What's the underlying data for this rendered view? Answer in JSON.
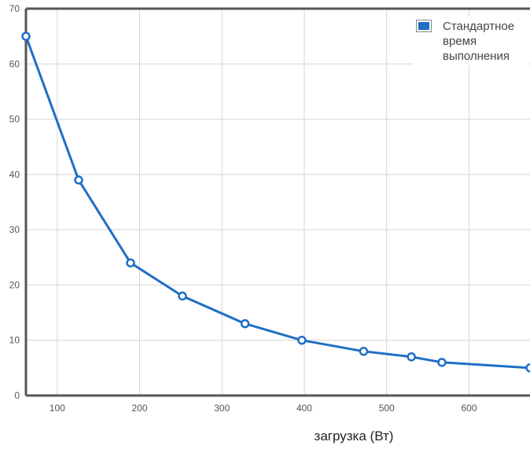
{
  "chart_data": {
    "type": "line",
    "xlabel": "загрузка (Вт)",
    "ylabel": "",
    "xlim": [
      62,
      674
    ],
    "ylim": [
      0,
      70
    ],
    "x_ticks": [
      100,
      200,
      300,
      400,
      500,
      600
    ],
    "y_ticks": [
      0,
      10,
      20,
      30,
      40,
      50,
      60,
      70
    ],
    "grid": true,
    "legend_position": "top-right",
    "series": [
      {
        "name": "Стандартное время выполнения",
        "color": "#1f6fc5",
        "x": [
          62,
          126,
          189,
          252,
          328,
          397,
          472,
          530,
          567,
          674
        ],
        "y": [
          65,
          39,
          24,
          18,
          13,
          10,
          8,
          7,
          6,
          5
        ]
      }
    ]
  }
}
